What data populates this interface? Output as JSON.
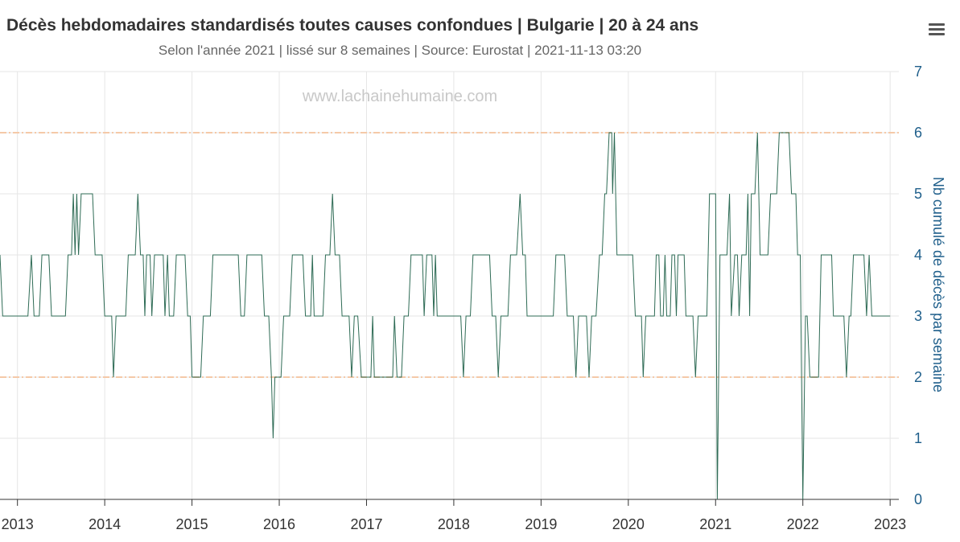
{
  "colors": {
    "line": "#2e6b55",
    "threshold": "#f5c9a8",
    "grid": "#e6e6e6",
    "axis": "#333333",
    "yaxis_text": "#1f5f8b"
  },
  "menu": {
    "icon": "hamburger-menu-icon"
  },
  "watermark": "www.lachainehumaine.com",
  "chart_data": {
    "type": "line",
    "title": "Décès hebdomadaires standardisés toutes causes confondues | Bulgarie | 20 à 24 ans",
    "subtitle": "Selon l'année 2021 | lissé sur 8 semaines | Source: Eurostat | 2021-11-13 03:20",
    "xlabel": "",
    "ylabel": "Nb cumulé de décès par semaine",
    "xlim": [
      2012.8,
      2023.1
    ],
    "ylim": [
      0,
      7
    ],
    "x_ticks": [
      2013,
      2014,
      2015,
      2016,
      2017,
      2018,
      2019,
      2020,
      2021,
      2022,
      2023
    ],
    "x_tick_labels": [
      "2013",
      "2014",
      "2015",
      "2016",
      "2017",
      "2018",
      "2019",
      "2020",
      "2021",
      "2022",
      "2023"
    ],
    "y_ticks": [
      0,
      1,
      2,
      3,
      4,
      5,
      6,
      7
    ],
    "y_tick_labels": [
      "0",
      "1",
      "2",
      "3",
      "4",
      "5",
      "6",
      "7"
    ],
    "y_axis_position": "right",
    "grid": true,
    "thresholds": [
      2,
      6
    ],
    "series": [
      {
        "points": [
          [
            2012.8,
            4
          ],
          [
            2012.83,
            3
          ],
          [
            2013.12,
            3
          ],
          [
            2013.16,
            4
          ],
          [
            2013.19,
            3
          ],
          [
            2013.25,
            3
          ],
          [
            2013.28,
            4
          ],
          [
            2013.36,
            4
          ],
          [
            2013.39,
            3
          ],
          [
            2013.55,
            3
          ],
          [
            2013.58,
            4
          ],
          [
            2013.62,
            4
          ],
          [
            2013.64,
            5
          ],
          [
            2013.66,
            4
          ],
          [
            2013.68,
            5
          ],
          [
            2013.7,
            4
          ],
          [
            2013.73,
            5
          ],
          [
            2013.86,
            5
          ],
          [
            2013.89,
            4
          ],
          [
            2013.97,
            4
          ],
          [
            2014.0,
            3
          ],
          [
            2014.08,
            3
          ],
          [
            2014.1,
            2
          ],
          [
            2014.13,
            3
          ],
          [
            2014.24,
            3
          ],
          [
            2014.27,
            4
          ],
          [
            2014.35,
            4
          ],
          [
            2014.38,
            5
          ],
          [
            2014.41,
            4
          ],
          [
            2014.44,
            4
          ],
          [
            2014.46,
            3
          ],
          [
            2014.48,
            4
          ],
          [
            2014.52,
            4
          ],
          [
            2014.54,
            3
          ],
          [
            2014.57,
            4
          ],
          [
            2014.67,
            4
          ],
          [
            2014.69,
            3
          ],
          [
            2014.72,
            4
          ],
          [
            2014.74,
            3
          ],
          [
            2014.79,
            3
          ],
          [
            2014.82,
            4
          ],
          [
            2014.92,
            4
          ],
          [
            2014.95,
            3
          ],
          [
            2014.98,
            3
          ],
          [
            2015.0,
            2
          ],
          [
            2015.1,
            2
          ],
          [
            2015.13,
            3
          ],
          [
            2015.21,
            3
          ],
          [
            2015.24,
            4
          ],
          [
            2015.53,
            4
          ],
          [
            2015.56,
            3
          ],
          [
            2015.6,
            3
          ],
          [
            2015.63,
            4
          ],
          [
            2015.8,
            4
          ],
          [
            2015.83,
            3
          ],
          [
            2015.88,
            3
          ],
          [
            2015.91,
            2
          ],
          [
            2015.93,
            1
          ],
          [
            2015.95,
            2
          ],
          [
            2016.02,
            2
          ],
          [
            2016.05,
            3
          ],
          [
            2016.12,
            3
          ],
          [
            2016.15,
            4
          ],
          [
            2016.27,
            4
          ],
          [
            2016.3,
            3
          ],
          [
            2016.36,
            3
          ],
          [
            2016.38,
            4
          ],
          [
            2016.4,
            3
          ],
          [
            2016.5,
            3
          ],
          [
            2016.53,
            4
          ],
          [
            2016.58,
            4
          ],
          [
            2016.61,
            5
          ],
          [
            2016.64,
            4
          ],
          [
            2016.69,
            4
          ],
          [
            2016.72,
            3
          ],
          [
            2016.8,
            3
          ],
          [
            2016.83,
            2
          ],
          [
            2016.86,
            3
          ],
          [
            2016.9,
            3
          ],
          [
            2016.94,
            2
          ],
          [
            2017.05,
            2
          ],
          [
            2017.07,
            3
          ],
          [
            2017.09,
            2
          ],
          [
            2017.3,
            2
          ],
          [
            2017.32,
            3
          ],
          [
            2017.35,
            2
          ],
          [
            2017.4,
            2
          ],
          [
            2017.43,
            3
          ],
          [
            2017.48,
            3
          ],
          [
            2017.51,
            4
          ],
          [
            2017.64,
            4
          ],
          [
            2017.66,
            3
          ],
          [
            2017.69,
            4
          ],
          [
            2017.75,
            4
          ],
          [
            2017.77,
            3
          ],
          [
            2017.79,
            4
          ],
          [
            2017.81,
            3
          ],
          [
            2018.08,
            3
          ],
          [
            2018.11,
            2
          ],
          [
            2018.14,
            3
          ],
          [
            2018.19,
            3
          ],
          [
            2018.22,
            4
          ],
          [
            2018.41,
            4
          ],
          [
            2018.44,
            3
          ],
          [
            2018.48,
            3
          ],
          [
            2018.51,
            2
          ],
          [
            2018.54,
            3
          ],
          [
            2018.62,
            3
          ],
          [
            2018.65,
            4
          ],
          [
            2018.72,
            4
          ],
          [
            2018.76,
            5
          ],
          [
            2018.79,
            4
          ],
          [
            2018.82,
            4
          ],
          [
            2018.84,
            3
          ],
          [
            2019.14,
            3
          ],
          [
            2019.17,
            4
          ],
          [
            2019.27,
            4
          ],
          [
            2019.3,
            3
          ],
          [
            2019.37,
            3
          ],
          [
            2019.4,
            2
          ],
          [
            2019.43,
            3
          ],
          [
            2019.52,
            3
          ],
          [
            2019.55,
            2
          ],
          [
            2019.58,
            3
          ],
          [
            2019.63,
            3
          ],
          [
            2019.67,
            4
          ],
          [
            2019.7,
            4
          ],
          [
            2019.73,
            5
          ],
          [
            2019.75,
            5
          ],
          [
            2019.78,
            6
          ],
          [
            2019.81,
            6
          ],
          [
            2019.82,
            5
          ],
          [
            2019.84,
            6
          ],
          [
            2019.87,
            4
          ],
          [
            2020.05,
            4
          ],
          [
            2020.08,
            3
          ],
          [
            2020.15,
            3
          ],
          [
            2020.17,
            2
          ],
          [
            2020.2,
            3
          ],
          [
            2020.3,
            3
          ],
          [
            2020.32,
            4
          ],
          [
            2020.35,
            4
          ],
          [
            2020.37,
            3
          ],
          [
            2020.4,
            3
          ],
          [
            2020.42,
            4
          ],
          [
            2020.44,
            3
          ],
          [
            2020.48,
            3
          ],
          [
            2020.5,
            4
          ],
          [
            2020.53,
            4
          ],
          [
            2020.55,
            3
          ],
          [
            2020.57,
            4
          ],
          [
            2020.61,
            4
          ],
          [
            2020.64,
            4
          ],
          [
            2020.66,
            3
          ],
          [
            2020.74,
            3
          ],
          [
            2020.77,
            2
          ],
          [
            2020.8,
            3
          ],
          [
            2020.9,
            3
          ],
          [
            2020.93,
            5
          ],
          [
            2021.0,
            5
          ],
          [
            2021.02,
            0
          ],
          [
            2021.05,
            4
          ],
          [
            2021.13,
            4
          ],
          [
            2021.16,
            5
          ],
          [
            2021.18,
            3
          ],
          [
            2021.22,
            4
          ],
          [
            2021.25,
            4
          ],
          [
            2021.27,
            3
          ],
          [
            2021.3,
            4
          ],
          [
            2021.35,
            4
          ],
          [
            2021.37,
            5
          ],
          [
            2021.39,
            3
          ],
          [
            2021.41,
            5
          ],
          [
            2021.45,
            5
          ],
          [
            2021.48,
            6
          ],
          [
            2021.51,
            4
          ],
          [
            2021.6,
            4
          ],
          [
            2021.63,
            5
          ],
          [
            2021.7,
            5
          ],
          [
            2021.73,
            6
          ],
          [
            2021.84,
            6
          ],
          [
            2021.87,
            5
          ],
          [
            2021.92,
            5
          ],
          [
            2021.94,
            4
          ],
          [
            2021.97,
            4
          ],
          [
            2022.0,
            0
          ],
          [
            2022.03,
            3
          ],
          [
            2022.05,
            3
          ],
          [
            2022.08,
            2
          ],
          [
            2022.18,
            2
          ],
          [
            2022.21,
            4
          ],
          [
            2022.33,
            4
          ],
          [
            2022.35,
            3
          ],
          [
            2022.47,
            3
          ],
          [
            2022.5,
            2
          ],
          [
            2022.53,
            3
          ],
          [
            2022.55,
            3
          ],
          [
            2022.58,
            4
          ],
          [
            2022.7,
            4
          ],
          [
            2022.73,
            3
          ],
          [
            2022.76,
            4
          ],
          [
            2022.79,
            3
          ],
          [
            2023.0,
            3
          ]
        ]
      }
    ]
  }
}
